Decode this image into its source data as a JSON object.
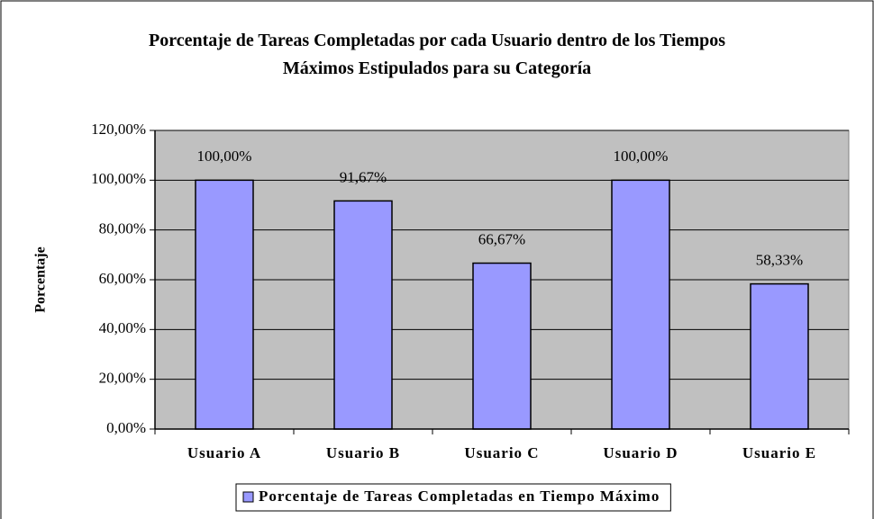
{
  "chart_data": {
    "type": "bar",
    "title": "Porcentaje de Tareas Completadas por cada Usuario dentro de los Tiempos Máximos Estipulados para su Categoría",
    "ylabel": "Porcentaje",
    "categories": [
      "Usuario A",
      "Usuario B",
      "Usuario C",
      "Usuario D",
      "Usuario E"
    ],
    "series": [
      {
        "name": "Porcentaje de Tareas Completadas en Tiempo Máximo",
        "color": "#9999ff",
        "values": [
          100,
          91.67,
          66.67,
          100,
          58.33
        ],
        "value_labels": [
          "100,00%",
          "91,67%",
          "66,67%",
          "100,00%",
          "58,33%"
        ]
      }
    ],
    "ylim": [
      0,
      120
    ],
    "yticks": [
      {
        "value": 0,
        "label": "0,00%"
      },
      {
        "value": 20,
        "label": "20,00%"
      },
      {
        "value": 40,
        "label": "40,00%"
      },
      {
        "value": 60,
        "label": "60,00%"
      },
      {
        "value": 80,
        "label": "80,00%"
      },
      {
        "value": 100,
        "label": "100,00%"
      },
      {
        "value": 120,
        "label": "120,00%"
      }
    ],
    "grid": true,
    "legend": "bottom"
  }
}
